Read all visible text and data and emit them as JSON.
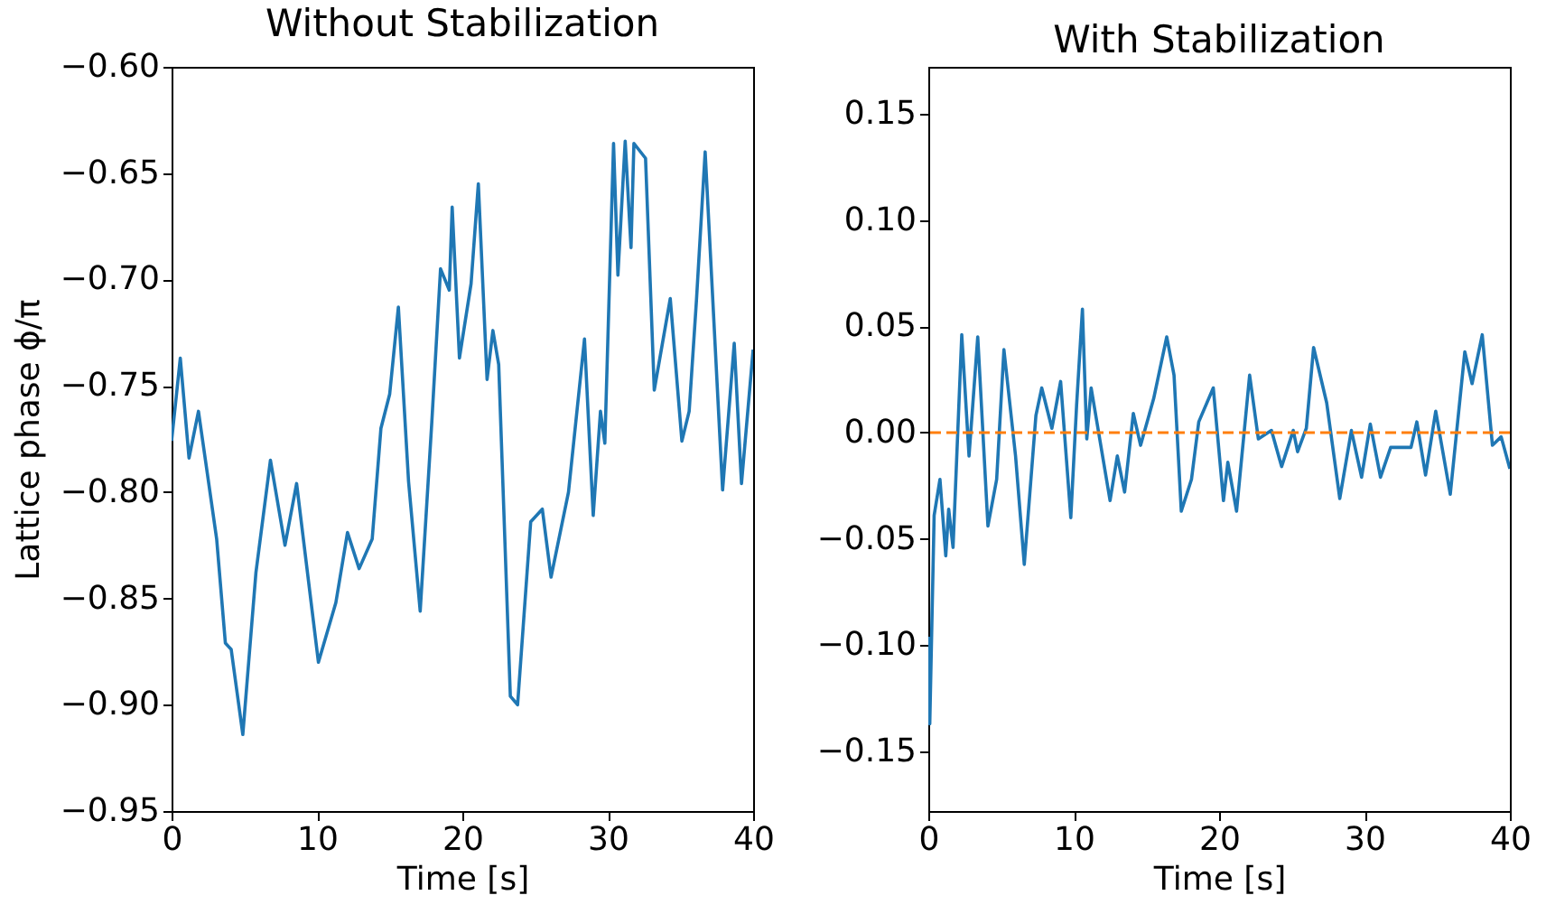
{
  "chart_data": [
    {
      "type": "line",
      "title": "Without Stabilization",
      "xlabel": "Time [s]",
      "ylabel": "Lattice phase ϕ/π",
      "xlim": [
        0,
        40
      ],
      "xticks": [
        0,
        10,
        20,
        30,
        40
      ],
      "ylim": [
        -0.95,
        -0.6
      ],
      "yticks": [
        {
          "value": -0.95,
          "label": "−0.95"
        },
        {
          "value": -0.9,
          "label": "−0.90"
        },
        {
          "value": -0.85,
          "label": "−0.85"
        },
        {
          "value": -0.8,
          "label": "−0.80"
        },
        {
          "value": -0.75,
          "label": "−0.75"
        },
        {
          "value": -0.7,
          "label": "−0.70"
        },
        {
          "value": -0.65,
          "label": "−0.65"
        },
        {
          "value": -0.6,
          "label": "−0.60"
        }
      ],
      "grid": false,
      "series": [
        {
          "color": "#1f77b4",
          "x": [
            0,
            0.6,
            1.2,
            1.85,
            3.1,
            3.7,
            4.1,
            4.9,
            5.8,
            6.8,
            7.8,
            8.6,
            10.1,
            11.3,
            12.1,
            12.9,
            13.8,
            14.4,
            15.0,
            15.6,
            16.3,
            17.1,
            17.9,
            18.5,
            19.1,
            19.3,
            19.8,
            20.6,
            21.1,
            21.7,
            22.1,
            22.5,
            23.3,
            23.8,
            24.7,
            25.5,
            26.1,
            27.3,
            28.4,
            29.0,
            29.5,
            29.8,
            30.4,
            30.7,
            31.2,
            31.6,
            31.8,
            32.6,
            33.2,
            34.3,
            35.1,
            35.6,
            36.1,
            36.7,
            37.9,
            38.7,
            39.2,
            40
          ],
          "values": [
            -0.776,
            -0.737,
            -0.784,
            -0.762,
            -0.822,
            -0.871,
            -0.874,
            -0.914,
            -0.838,
            -0.785,
            -0.825,
            -0.796,
            -0.88,
            -0.852,
            -0.819,
            -0.836,
            -0.822,
            -0.77,
            -0.754,
            -0.713,
            -0.795,
            -0.856,
            -0.767,
            -0.695,
            -0.705,
            -0.666,
            -0.737,
            -0.702,
            -0.655,
            -0.747,
            -0.724,
            -0.74,
            -0.896,
            -0.9,
            -0.814,
            -0.808,
            -0.84,
            -0.8,
            -0.728,
            -0.811,
            -0.762,
            -0.777,
            -0.636,
            -0.698,
            -0.635,
            -0.685,
            -0.636,
            -0.643,
            -0.752,
            -0.709,
            -0.776,
            -0.762,
            -0.71,
            -0.64,
            -0.799,
            -0.73,
            -0.796,
            -0.733
          ]
        }
      ]
    },
    {
      "type": "line",
      "title": "With Stabilization",
      "xlabel": "Time [s]",
      "xlim": [
        0,
        40
      ],
      "xticks": [
        0,
        10,
        20,
        30,
        40
      ],
      "ylim": [
        -0.178,
        0.172
      ],
      "yticks": [
        {
          "value": -0.15,
          "label": "−0.15"
        },
        {
          "value": -0.1,
          "label": "−0.10"
        },
        {
          "value": -0.05,
          "label": "−0.05"
        },
        {
          "value": 0,
          "label": "0.00"
        },
        {
          "value": 0.05,
          "label": "0.05"
        },
        {
          "value": 0.1,
          "label": "0.10"
        },
        {
          "value": 0.15,
          "label": "0.15"
        }
      ],
      "grid": false,
      "ref_lines": [
        {
          "axis": "y",
          "value": 0,
          "color": "#ff7f0e",
          "line_style": "dashed"
        }
      ],
      "series": [
        {
          "color": "#1f77b4",
          "x": [
            0,
            0.1,
            0.4,
            0.8,
            1.2,
            1.4,
            1.7,
            2.3,
            2.8,
            3.4,
            4.1,
            4.7,
            5.2,
            6.0,
            6.6,
            7.4,
            7.8,
            8.5,
            9.1,
            9.8,
            10.2,
            10.6,
            10.9,
            11.2,
            12.5,
            13.0,
            13.5,
            14.1,
            14.6,
            15.5,
            16.4,
            16.9,
            17.4,
            18.1,
            18.6,
            19.6,
            20.3,
            20.6,
            21.2,
            22.1,
            22.7,
            23.6,
            24.3,
            25.1,
            25.4,
            26.0,
            26.5,
            27.4,
            28.3,
            29.1,
            29.8,
            30.4,
            31.1,
            31.8,
            33.2,
            33.6,
            34.2,
            34.9,
            35.9,
            36.9,
            37.4,
            38.1,
            38.8,
            39.4,
            40
          ],
          "values": [
            -0.096,
            -0.137,
            -0.039,
            -0.022,
            -0.058,
            -0.036,
            -0.054,
            0.046,
            -0.011,
            0.045,
            -0.044,
            -0.022,
            0.039,
            -0.011,
            -0.062,
            0.008,
            0.021,
            0.002,
            0.024,
            -0.04,
            0.013,
            0.058,
            -0.003,
            0.021,
            -0.032,
            -0.011,
            -0.028,
            0.009,
            -0.006,
            0.016,
            0.045,
            0.027,
            -0.037,
            -0.022,
            0.005,
            0.021,
            -0.032,
            -0.014,
            -0.037,
            0.027,
            -0.003,
            0.001,
            -0.016,
            0.001,
            -0.009,
            0.002,
            0.04,
            0.014,
            -0.031,
            0.001,
            -0.021,
            0.004,
            -0.021,
            -0.007,
            -0.007,
            0.005,
            -0.02,
            0.01,
            -0.029,
            0.038,
            0.023,
            0.046,
            -0.006,
            -0.002,
            -0.017
          ]
        }
      ]
    }
  ]
}
